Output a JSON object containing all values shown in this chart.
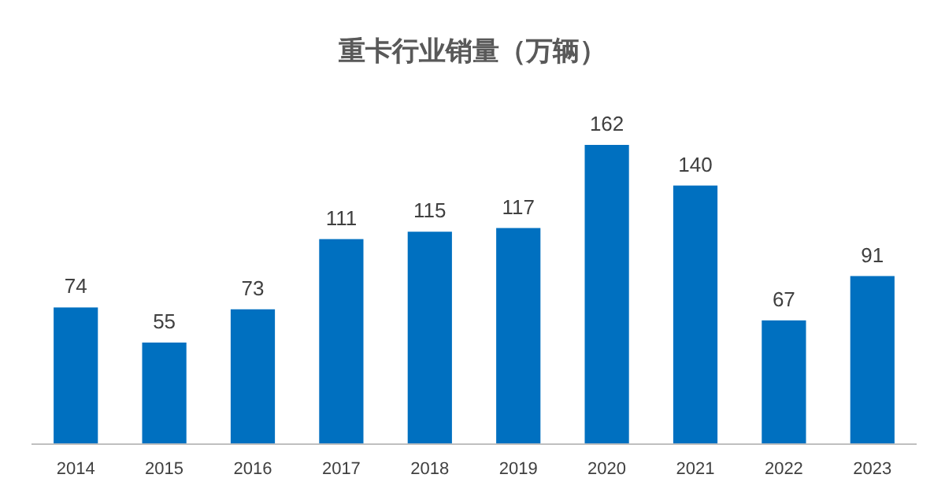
{
  "chart_data": {
    "type": "bar",
    "title": "重卡行业销量（万辆）",
    "categories": [
      "2014",
      "2015",
      "2016",
      "2017",
      "2018",
      "2019",
      "2020",
      "2021",
      "2022",
      "2023"
    ],
    "values": [
      74,
      55,
      73,
      111,
      115,
      117,
      162,
      140,
      67,
      91
    ],
    "color": "#0070c0",
    "data_labels": true
  }
}
